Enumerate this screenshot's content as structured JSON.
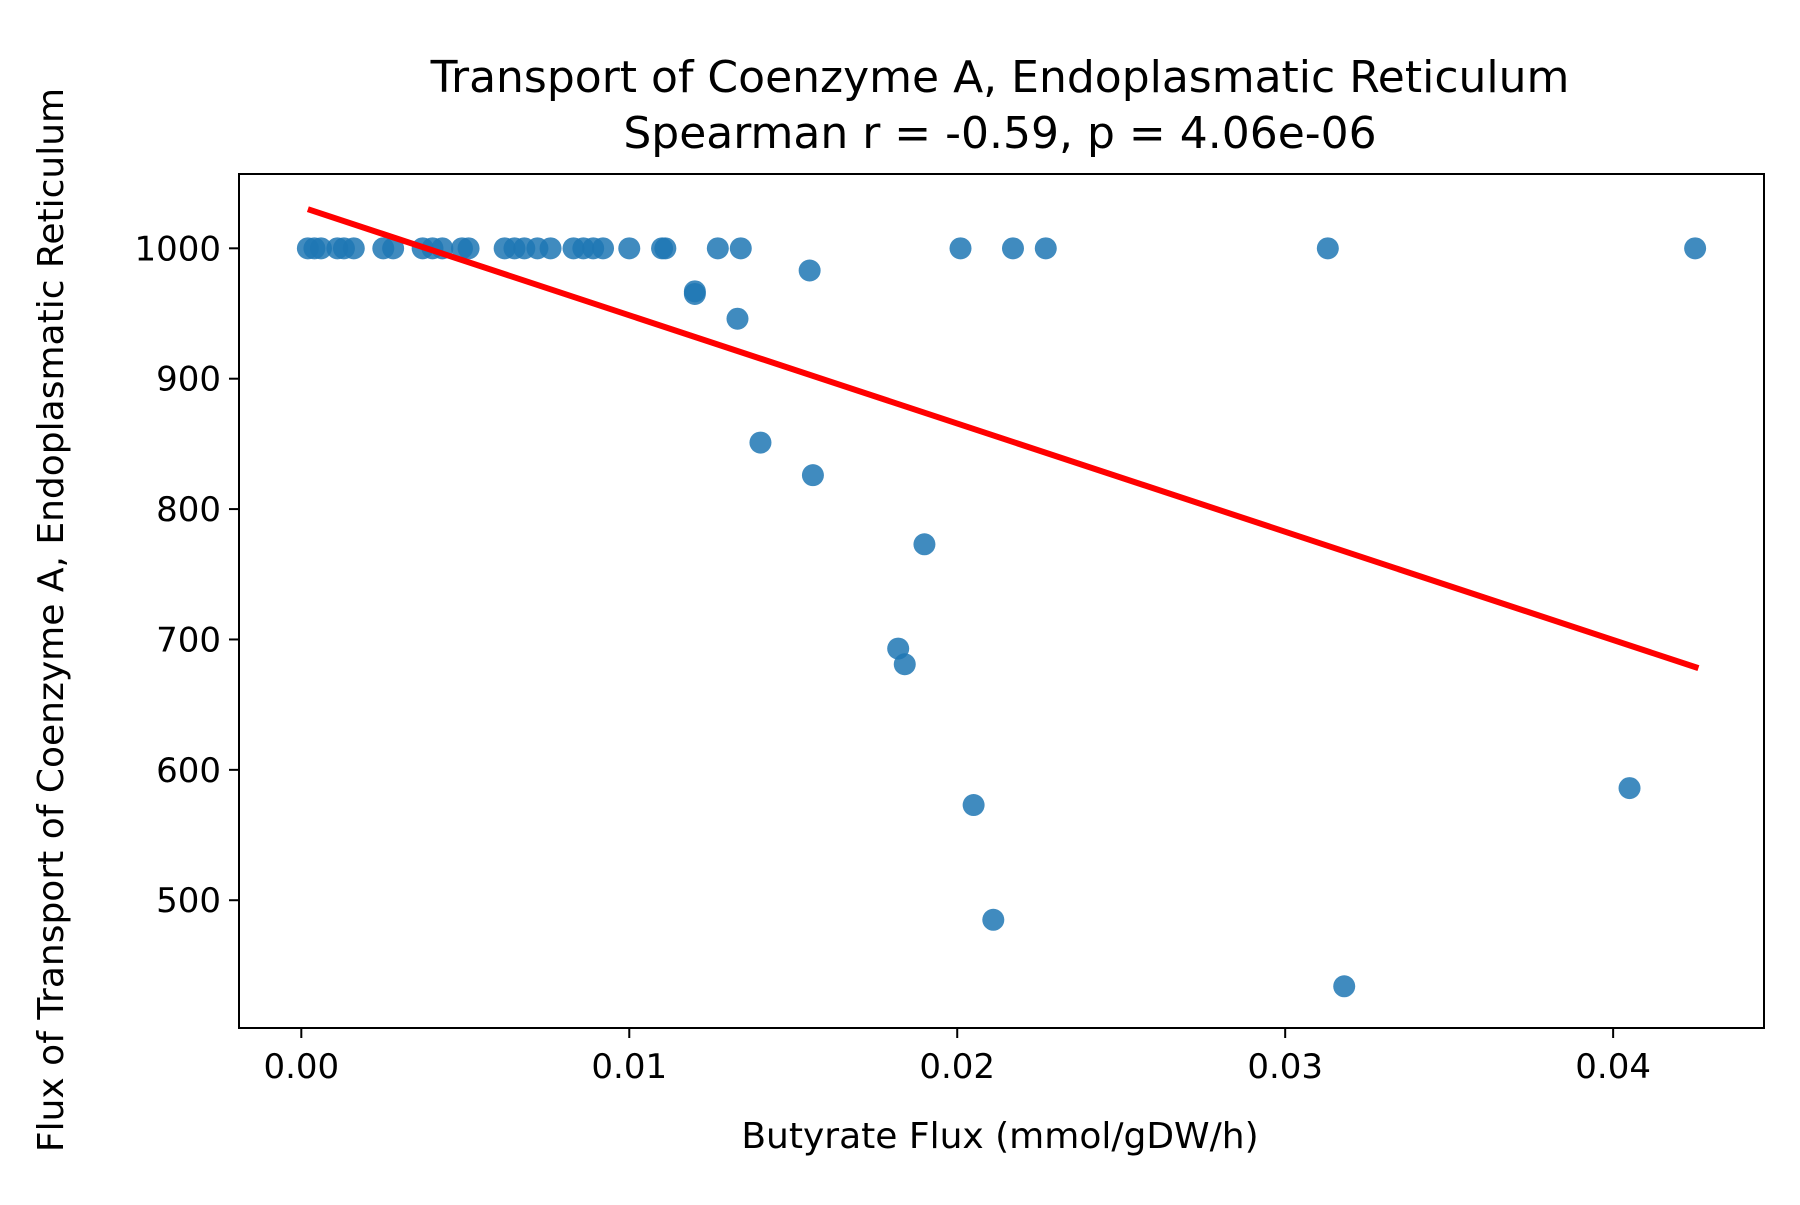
{
  "chart_data": {
    "type": "scatter",
    "title": "Transport of Coenzyme A, Endoplasmatic Reticulum",
    "subtitle": "Spearman r = -0.59, p = 4.06e-06",
    "xlabel": "Butyrate Flux (mmol/gDW/h)",
    "ylabel": "Flux of Transport of Coenzyme A, Endoplasmatic Reticulum",
    "xlim": [
      -0.0019,
      0.0446
    ],
    "ylim": [
      402,
      1057
    ],
    "x_ticks": [
      0.0,
      0.01,
      0.02,
      0.03,
      0.04
    ],
    "x_tick_labels": [
      "0.00",
      "0.01",
      "0.02",
      "0.03",
      "0.04"
    ],
    "y_ticks": [
      500,
      600,
      700,
      800,
      900,
      1000
    ],
    "y_tick_labels": [
      "500",
      "600",
      "700",
      "800",
      "900",
      "1000"
    ],
    "grid": false,
    "point_color": "#1f77b4",
    "trend_color": "#ff0000",
    "points": [
      {
        "x": 0.0002,
        "y": 1000
      },
      {
        "x": 0.0004,
        "y": 1000
      },
      {
        "x": 0.0006,
        "y": 1000
      },
      {
        "x": 0.0011,
        "y": 1000
      },
      {
        "x": 0.0013,
        "y": 1000
      },
      {
        "x": 0.0016,
        "y": 1000
      },
      {
        "x": 0.0025,
        "y": 1000
      },
      {
        "x": 0.0028,
        "y": 1000
      },
      {
        "x": 0.0037,
        "y": 1000
      },
      {
        "x": 0.004,
        "y": 1000
      },
      {
        "x": 0.0043,
        "y": 1000
      },
      {
        "x": 0.0049,
        "y": 1000
      },
      {
        "x": 0.0051,
        "y": 1000
      },
      {
        "x": 0.0062,
        "y": 1000
      },
      {
        "x": 0.0065,
        "y": 1000
      },
      {
        "x": 0.0068,
        "y": 1000
      },
      {
        "x": 0.0072,
        "y": 1000
      },
      {
        "x": 0.0076,
        "y": 1000
      },
      {
        "x": 0.0083,
        "y": 1000
      },
      {
        "x": 0.0086,
        "y": 1000
      },
      {
        "x": 0.0089,
        "y": 1000
      },
      {
        "x": 0.0092,
        "y": 1000
      },
      {
        "x": 0.01,
        "y": 1000
      },
      {
        "x": 0.011,
        "y": 1000
      },
      {
        "x": 0.0111,
        "y": 1000
      },
      {
        "x": 0.0127,
        "y": 1000
      },
      {
        "x": 0.0134,
        "y": 1000
      },
      {
        "x": 0.0201,
        "y": 1000
      },
      {
        "x": 0.0217,
        "y": 1000
      },
      {
        "x": 0.0227,
        "y": 1000
      },
      {
        "x": 0.0313,
        "y": 1000
      },
      {
        "x": 0.0425,
        "y": 1000
      },
      {
        "x": 0.0155,
        "y": 983
      },
      {
        "x": 0.012,
        "y": 967
      },
      {
        "x": 0.012,
        "y": 965
      },
      {
        "x": 0.0133,
        "y": 946
      },
      {
        "x": 0.014,
        "y": 851
      },
      {
        "x": 0.0156,
        "y": 826
      },
      {
        "x": 0.019,
        "y": 773
      },
      {
        "x": 0.0182,
        "y": 693
      },
      {
        "x": 0.0184,
        "y": 681
      },
      {
        "x": 0.0205,
        "y": 573
      },
      {
        "x": 0.0211,
        "y": 485
      },
      {
        "x": 0.0318,
        "y": 434
      },
      {
        "x": 0.0405,
        "y": 586
      }
    ],
    "trend_line": [
      {
        "x": 0.0002,
        "y": 1030
      },
      {
        "x": 0.0426,
        "y": 678
      }
    ]
  }
}
